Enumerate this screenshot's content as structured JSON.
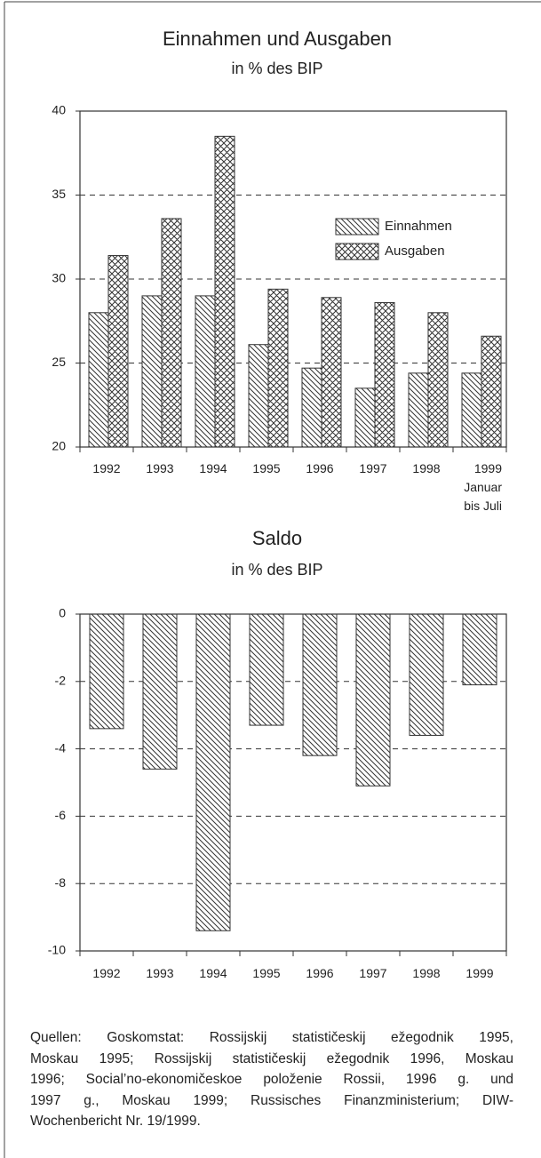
{
  "chart_data": [
    {
      "type": "bar",
      "title": "Einnahmen und Ausgaben",
      "subtitle": "in % des BIP",
      "categories": [
        "1992",
        "1993",
        "1994",
        "1995",
        "1996",
        "1997",
        "1998",
        "1999\nJanuar\nbis Juli"
      ],
      "series": [
        {
          "name": "Einnahmen",
          "values": [
            28,
            29,
            29,
            26.1,
            24.7,
            23.5,
            24.4,
            24.4
          ]
        },
        {
          "name": "Ausgaben",
          "values": [
            31.4,
            33.6,
            38.5,
            29.4,
            28.9,
            28.6,
            28,
            26.6
          ]
        }
      ],
      "ylim": [
        20,
        40
      ],
      "yticks": [
        20,
        25,
        30,
        35,
        40
      ],
      "grid": true,
      "legend": "upper right"
    },
    {
      "type": "bar",
      "title": "Saldo",
      "subtitle": "in % des BIP",
      "categories": [
        "1992",
        "1993",
        "1994",
        "1995",
        "1996",
        "1997",
        "1998",
        "1999"
      ],
      "values": [
        -3.4,
        -4.6,
        -9.4,
        -3.3,
        -4.2,
        -5.1,
        -3.6,
        -2.1
      ],
      "ylim": [
        -10,
        0
      ],
      "yticks": [
        -10,
        -8,
        -6,
        -4,
        -2,
        0
      ],
      "grid": true
    }
  ],
  "source": [
    "Quellen: Goskomstat: Rossijskij statističeskij ežegodnik 1995,",
    "Moskau 1995; Rossijskij statističeskij ežegodnik 1996, Moskau",
    "1996; Social’no-ekonomičeskoe položenie Rossii, 1996 g. und",
    "1997 g., Moskau 1999; Russisches Finanzministerium; DIW-",
    "Wochenbericht Nr. 19/1999."
  ]
}
